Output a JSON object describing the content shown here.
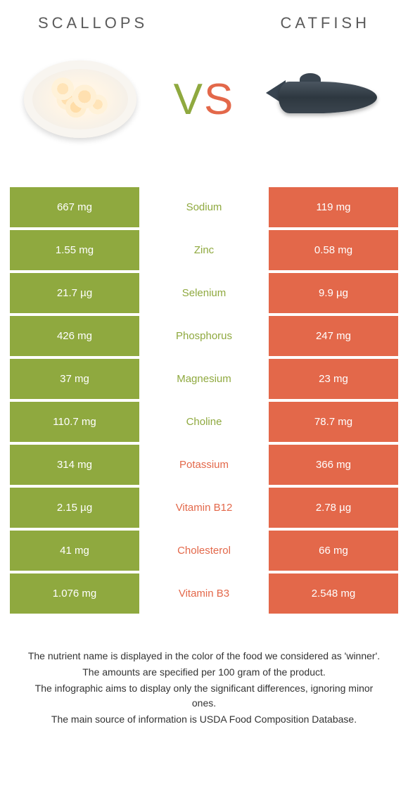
{
  "header": {
    "left_title": "Scallops",
    "right_title": "Catfish",
    "vs_v": "V",
    "vs_s": "S"
  },
  "colors": {
    "left": "#8fa93f",
    "right": "#e3684a",
    "text": "#333333",
    "bg": "#ffffff"
  },
  "rows": [
    {
      "left": "667 mg",
      "label": "Sodium",
      "right": "119 mg",
      "winner": "left"
    },
    {
      "left": "1.55 mg",
      "label": "Zinc",
      "right": "0.58 mg",
      "winner": "left"
    },
    {
      "left": "21.7 µg",
      "label": "Selenium",
      "right": "9.9 µg",
      "winner": "left"
    },
    {
      "left": "426 mg",
      "label": "Phosphorus",
      "right": "247 mg",
      "winner": "left"
    },
    {
      "left": "37 mg",
      "label": "Magnesium",
      "right": "23 mg",
      "winner": "left"
    },
    {
      "left": "110.7 mg",
      "label": "Choline",
      "right": "78.7 mg",
      "winner": "left"
    },
    {
      "left": "314 mg",
      "label": "Potassium",
      "right": "366 mg",
      "winner": "right"
    },
    {
      "left": "2.15 µg",
      "label": "Vitamin B12",
      "right": "2.78 µg",
      "winner": "right"
    },
    {
      "left": "41 mg",
      "label": "Cholesterol",
      "right": "66 mg",
      "winner": "right"
    },
    {
      "left": "1.076 mg",
      "label": "Vitamin B3",
      "right": "2.548 mg",
      "winner": "right"
    }
  ],
  "footer": {
    "line1": "The nutrient name is displayed in the color of the food we considered as 'winner'.",
    "line2": "The amounts are specified per 100 gram of the product.",
    "line3": "The infographic aims to display only the significant differences, ignoring minor ones.",
    "line4": "The main source of information is USDA Food Composition Database."
  }
}
